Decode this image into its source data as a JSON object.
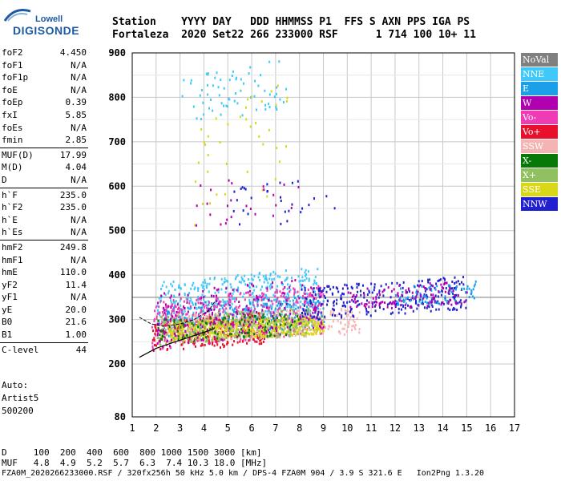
{
  "logo": {
    "line1": "Lowell",
    "line2": "DIGISONDE"
  },
  "header": {
    "line1": "Station    YYYY DAY   DDD HHMMSS P1  FFS S AXN PPS IGA PS",
    "line2": "Fortaleza  2020 Set22 266 233000 RSF      1 714 100 10+ 11"
  },
  "params": [
    {
      "group": [
        {
          "name": "foF2",
          "value": "4.450"
        },
        {
          "name": "foF1",
          "value": "N/A"
        },
        {
          "name": "foF1p",
          "value": "N/A"
        },
        {
          "name": "foE",
          "value": "N/A"
        },
        {
          "name": "foEp",
          "value": "0.39"
        },
        {
          "name": "fxI",
          "value": "5.85"
        },
        {
          "name": "foEs",
          "value": "N/A"
        },
        {
          "name": "fmin",
          "value": "2.85"
        }
      ]
    },
    {
      "group": [
        {
          "name": "MUF(D)",
          "value": "17.99"
        },
        {
          "name": "M(D)",
          "value": "4.04"
        },
        {
          "name": "D",
          "value": "N/A"
        }
      ]
    },
    {
      "group": [
        {
          "name": "h`F",
          "value": "235.0"
        },
        {
          "name": "h`F2",
          "value": "235.0"
        },
        {
          "name": "h`E",
          "value": "N/A"
        },
        {
          "name": "h`Es",
          "value": "N/A"
        }
      ]
    },
    {
      "group": [
        {
          "name": "hmF2",
          "value": "249.8"
        },
        {
          "name": "hmF1",
          "value": "N/A"
        },
        {
          "name": "hmE",
          "value": "110.0"
        },
        {
          "name": "yF2",
          "value": "11.4"
        },
        {
          "name": "yF1",
          "value": "N/A"
        },
        {
          "name": "yE",
          "value": "20.0"
        },
        {
          "name": "B0",
          "value": "21.6"
        },
        {
          "name": "B1",
          "value": "1.00"
        }
      ]
    },
    {
      "group": [
        {
          "name": "C-level",
          "value": "44"
        }
      ]
    }
  ],
  "auto": {
    "line1": "Auto:",
    "line2": "Artist5",
    "line3": "500200"
  },
  "legend": [
    {
      "label": "NoVal",
      "color": "#808080"
    },
    {
      "label": "NNE",
      "color": "#40c8f8"
    },
    {
      "label": "E",
      "color": "#1a9fe8"
    },
    {
      "label": "W",
      "color": "#b000b0"
    },
    {
      "label": "Vo-",
      "color": "#f03cb4"
    },
    {
      "label": "Vo+",
      "color": "#e8102c"
    },
    {
      "label": "SSW",
      "color": "#f4b4b4"
    },
    {
      "label": "X-",
      "color": "#087808"
    },
    {
      "label": "X+",
      "color": "#90c060"
    },
    {
      "label": "SSE",
      "color": "#d8d818"
    },
    {
      "label": "NNW",
      "color": "#2020d0"
    }
  ],
  "footer": {
    "row1": "D     100  200  400  600  800 1000 1500 3000 [km]",
    "row2": "MUF   4.8  4.9  5.2  5.7  6.3  7.4 10.3 18.0 [MHz]",
    "row3": "FZA0M_2020266233000.RSF / 320fx256h 50 kHz 5.0 km / DPS-4 FZA0M 904 / 3.9 S 321.6 E   Ion2Png 1.3.20"
  },
  "chart_data": {
    "type": "scatter",
    "x": {
      "min": 1,
      "max": 17,
      "ticks": [
        "1",
        "2",
        "3",
        "4",
        "5",
        "6",
        "7",
        "8",
        "9",
        "10",
        "11",
        "12",
        "13",
        "14",
        "15",
        "16",
        "17"
      ]
    },
    "y": {
      "min": 80,
      "max": 900,
      "ticks": [
        "80",
        "200",
        "300",
        "400",
        "500",
        "600",
        "700",
        "800",
        "900"
      ]
    },
    "foF2_line_y": 350,
    "echo_regions": [
      {
        "name": "NNE",
        "color": "#40c8f8",
        "x": [
          2.0,
          8.8
        ],
        "y": [
          285,
          420
        ],
        "count": 420
      },
      {
        "name": "E",
        "color": "#1a9fe8",
        "x": [
          2.2,
          9.0
        ],
        "y": [
          260,
          360
        ],
        "count": 300
      },
      {
        "name": "Vo-",
        "color": "#f03cb4",
        "x": [
          1.8,
          9.0
        ],
        "y": [
          235,
          380
        ],
        "count": 450
      },
      {
        "name": "Vo+",
        "color": "#e8102c",
        "x": [
          1.8,
          6.5
        ],
        "y": [
          225,
          320
        ],
        "count": 250
      },
      {
        "name": "SSW",
        "color": "#f4b4b4",
        "x": [
          2.0,
          10.5
        ],
        "y": [
          250,
          330
        ],
        "count": 350
      },
      {
        "name": "SSE",
        "color": "#d8d818",
        "x": [
          2.5,
          9.0
        ],
        "y": [
          255,
          310
        ],
        "count": 500
      },
      {
        "name": "X+",
        "color": "#90c060",
        "x": [
          2.0,
          8.5
        ],
        "y": [
          245,
          330
        ],
        "count": 250
      },
      {
        "name": "X-",
        "color": "#087808",
        "x": [
          2.0,
          8.0
        ],
        "y": [
          250,
          320
        ],
        "count": 120
      },
      {
        "name": "W",
        "color": "#b000b0",
        "x": [
          2.0,
          9.0
        ],
        "y": [
          240,
          400
        ],
        "count": 200
      },
      {
        "name": "NNW",
        "color": "#2020d0",
        "x": [
          8.0,
          15.0
        ],
        "y": [
          300,
          400
        ],
        "count": 260
      },
      {
        "name": "NNW-mid",
        "color": "#2020d0",
        "x": [
          5.0,
          9.5
        ],
        "y": [
          500,
          630
        ],
        "count": 30
      },
      {
        "name": "NNE-high",
        "color": "#40c8f8",
        "x": [
          3.0,
          7.5
        ],
        "y": [
          740,
          890
        ],
        "count": 70
      },
      {
        "name": "SSE-high",
        "color": "#d8d818",
        "x": [
          3.5,
          7.5
        ],
        "y": [
          480,
          880
        ],
        "count": 40
      },
      {
        "name": "W-mid",
        "color": "#b000b0",
        "x": [
          3.5,
          8.0
        ],
        "y": [
          500,
          640
        ],
        "count": 25
      },
      {
        "name": "E-far",
        "color": "#1a9fe8",
        "x": [
          12.0,
          15.5
        ],
        "y": [
          330,
          390
        ],
        "count": 90
      },
      {
        "name": "W-far",
        "color": "#b000b0",
        "x": [
          10.0,
          15.0
        ],
        "y": [
          320,
          390
        ],
        "count": 120
      }
    ],
    "profile_curve": [
      [
        1.3,
        215
      ],
      [
        2.0,
        235
      ],
      [
        2.8,
        250
      ],
      [
        3.5,
        262
      ],
      [
        4.2,
        275
      ],
      [
        4.45,
        280
      ]
    ],
    "virtual_curve": [
      [
        1.3,
        305
      ],
      [
        1.8,
        290
      ],
      [
        2.3,
        285
      ],
      [
        3.0,
        290
      ],
      [
        3.6,
        300
      ],
      [
        4.2,
        320
      ],
      [
        4.45,
        340
      ]
    ]
  }
}
